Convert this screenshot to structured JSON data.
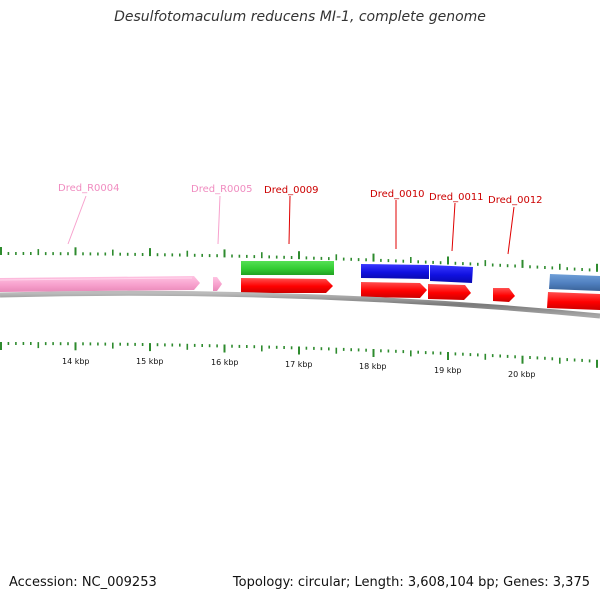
{
  "title": "Desulfotomaculum reducens MI-1, complete genome",
  "footer": {
    "accession": "Accession: NC_009253",
    "summary": "Topology: circular; Length: 3,608,104 bp; Genes: 3,375"
  },
  "colors": {
    "rrna": "#f7a1cd",
    "rrna_label": "#f08cc0",
    "cds_reverse": "#ff0000",
    "label_red": "#cc0000",
    "green_feature": "#33cc33",
    "blue_feature": "#1010e0",
    "steel_feature": "#4f7fbf",
    "tick": "#2e8b2e",
    "backbone": "#888888"
  },
  "scale_labels": [
    "14 kbp",
    "15 kbp",
    "16 kbp",
    "17 kbp",
    "18 kbp",
    "19 kbp",
    "20 kbp"
  ],
  "gene_labels": [
    {
      "text": "Dred_R0004",
      "color": "#f08cc0"
    },
    {
      "text": "Dred_R0005",
      "color": "#f08cc0"
    },
    {
      "text": "Dred_0009",
      "color": "#cc0000"
    },
    {
      "text": "Dred_0010",
      "color": "#cc0000"
    },
    {
      "text": "Dred_0011",
      "color": "#cc0000"
    },
    {
      "text": "Dred_0012",
      "color": "#cc0000"
    }
  ]
}
